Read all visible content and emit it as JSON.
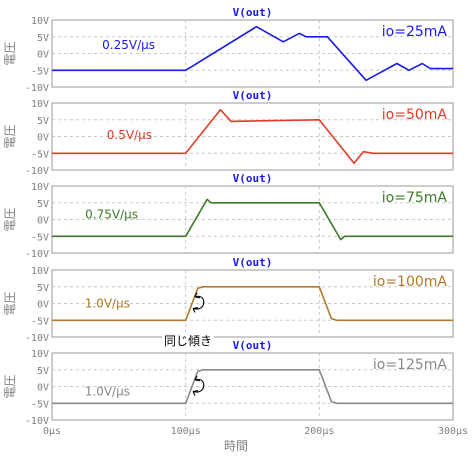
{
  "chart_data": [
    {
      "type": "line",
      "title": "V(out)",
      "ylabel": "電圧",
      "ylim": [
        -10,
        10
      ],
      "yticks": [
        "10V",
        "5V",
        "0V",
        "-5V",
        "-10V"
      ],
      "xlim": [
        0,
        300
      ],
      "series": [
        {
          "name": "io=25mA",
          "color": "#1a1ae6",
          "x": [
            0,
            100,
            153,
            173,
            185,
            190,
            206,
            235,
            258,
            267,
            277,
            283,
            300
          ],
          "y": [
            -5,
            -5,
            8,
            3.5,
            6,
            5,
            5,
            -8,
            -3,
            -5,
            -3,
            -4.5,
            -4.5
          ]
        }
      ],
      "annotations": [
        {
          "text": "0.25V/μs",
          "color": "#1a1ae6"
        }
      ]
    },
    {
      "type": "line",
      "title": "V(out)",
      "ylabel": "電圧",
      "ylim": [
        -10,
        10
      ],
      "yticks": [
        "10V",
        "5V",
        "0V",
        "-5V",
        "-10V"
      ],
      "xlim": [
        0,
        300
      ],
      "series": [
        {
          "name": "io=50mA",
          "color": "#e03c28",
          "x": [
            0,
            100,
            126,
            134,
            200,
            226,
            233,
            240,
            300
          ],
          "y": [
            -5,
            -5,
            8,
            4.5,
            5,
            -8,
            -4.5,
            -5,
            -5
          ]
        }
      ],
      "annotations": [
        {
          "text": "0.5V/μs",
          "color": "#e03c28"
        }
      ]
    },
    {
      "type": "line",
      "title": "V(out)",
      "ylabel": "電圧",
      "ylim": [
        -10,
        10
      ],
      "yticks": [
        "10V",
        "5V",
        "0V",
        "-5V",
        "-10V"
      ],
      "xlim": [
        0,
        300
      ],
      "series": [
        {
          "name": "io=75mA",
          "color": "#3c7a28",
          "x": [
            0,
            100,
            116,
            119,
            200,
            216,
            219,
            224,
            300
          ],
          "y": [
            -5,
            -5,
            6,
            5,
            5,
            -6,
            -5,
            -5,
            -5
          ]
        }
      ],
      "annotations": [
        {
          "text": "0.75V/μs",
          "color": "#3c7a28"
        }
      ]
    },
    {
      "type": "line",
      "title": "V(out)",
      "ylabel": "電圧",
      "ylim": [
        -10,
        10
      ],
      "yticks": [
        "10V",
        "5V",
        "0V",
        "-5V",
        "-10V"
      ],
      "xlim": [
        0,
        300
      ],
      "series": [
        {
          "name": "io=100mA",
          "color": "#b07a28",
          "x": [
            0,
            100,
            109,
            113,
            200,
            209,
            213,
            300
          ],
          "y": [
            -5,
            -5,
            4.5,
            5,
            5,
            -4.5,
            -5,
            -5
          ]
        }
      ],
      "annotations": [
        {
          "text": "1.0V/μs",
          "color": "#b07a28"
        }
      ]
    },
    {
      "type": "line",
      "title": "V(out)",
      "ylabel": "電圧",
      "ylim": [
        -10,
        10
      ],
      "yticks": [
        "10V",
        "5V",
        "0V",
        "-5V",
        "-10V"
      ],
      "xlim": [
        0,
        300
      ],
      "xticks": [
        "0μs",
        "100μs",
        "200μs",
        "300μs"
      ],
      "series": [
        {
          "name": "io=125mA",
          "color": "#8a8a8a",
          "x": [
            0,
            100,
            109,
            113,
            200,
            209,
            213,
            300
          ],
          "y": [
            -5,
            -5,
            4.5,
            5,
            5,
            -4.5,
            -5,
            -5
          ]
        }
      ],
      "annotations": [
        {
          "text": "1.0V/μs",
          "color": "#8a8a8a"
        }
      ]
    }
  ],
  "xlabel": "時間",
  "note": "同じ傾き",
  "grid": true,
  "colors": {
    "axis_text": "#808080",
    "title": "#1a1ae6",
    "grid": "#c8c8c8"
  }
}
